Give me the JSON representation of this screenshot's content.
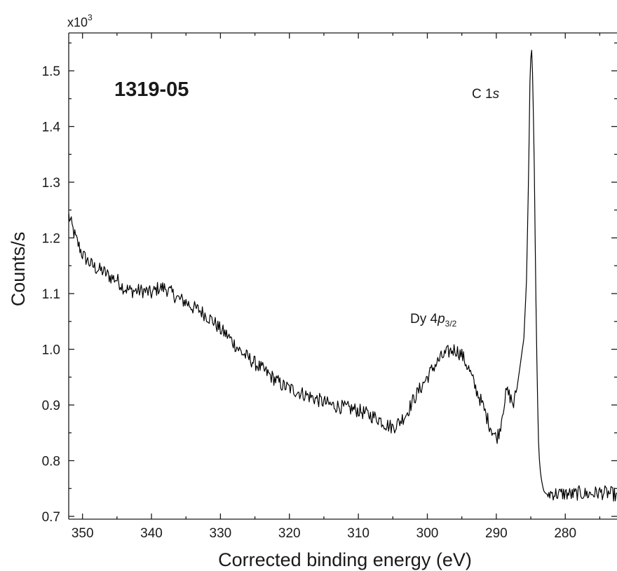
{
  "chart_data": {
    "type": "line",
    "title": "",
    "xlabel": "Corrected binding energy (eV)",
    "ylabel": "Counts/s",
    "y_multiplier": "x10",
    "y_multiplier_exponent": "3",
    "xlim": [
      352,
      272.5
    ],
    "x_reversed": true,
    "ylim": [
      0.695,
      1.568
    ],
    "x_ticks": [
      350,
      340,
      330,
      320,
      310,
      300,
      290,
      280
    ],
    "x_tick_labels": [
      "350",
      "340",
      "330",
      "320",
      "310",
      "300",
      "290",
      "280"
    ],
    "y_ticks": [
      0.7,
      0.8,
      0.9,
      1.0,
      1.1,
      1.2,
      1.3,
      1.4,
      1.5
    ],
    "y_tick_labels": [
      "0.7",
      "0.8",
      "0.9",
      "1.0",
      "1.1",
      "1.2",
      "1.3",
      "1.4",
      "1.5"
    ],
    "grid": false,
    "line_color": "#000000",
    "sample_label": "1319-05",
    "annotations": [
      {
        "prefix": "C 1",
        "italic": "s",
        "subscript": "",
        "x": 284.0,
        "y": 1.44
      },
      {
        "prefix": "Dy 4",
        "italic": "p",
        "subscript": "3/2",
        "x": 297.0,
        "y": 1.055
      }
    ],
    "series": [
      {
        "x": [
          352,
          351,
          350,
          349,
          348,
          347,
          346,
          345,
          344,
          343,
          342,
          341,
          340,
          339,
          338,
          337,
          336,
          335,
          334,
          333,
          332,
          331,
          330,
          329,
          328,
          327,
          326,
          325,
          324,
          323,
          322,
          321,
          320,
          319,
          318,
          317,
          316,
          315,
          314,
          313,
          312,
          311,
          310,
          309,
          308,
          307,
          306,
          305,
          304,
          303,
          302,
          301,
          300,
          299,
          298,
          297,
          296,
          295,
          294,
          293,
          292,
          291,
          290,
          289.5,
          289,
          288.5,
          288,
          287.5,
          287,
          286.5,
          286,
          285.6,
          285.3,
          285.1,
          284.9,
          284.7,
          284.5,
          284.3,
          284.1,
          283.9,
          283.7,
          283.5,
          283.3,
          283.1,
          282.9,
          282.7,
          282.5,
          282,
          281,
          280,
          279,
          278,
          277,
          276,
          275,
          274,
          273,
          272.5
        ],
        "values": [
          1.24,
          1.2,
          1.17,
          1.155,
          1.145,
          1.14,
          1.13,
          1.125,
          1.11,
          1.105,
          1.105,
          1.105,
          1.1,
          1.11,
          1.11,
          1.1,
          1.09,
          1.085,
          1.075,
          1.07,
          1.06,
          1.05,
          1.035,
          1.025,
          1.01,
          0.995,
          0.985,
          0.975,
          0.965,
          0.955,
          0.945,
          0.935,
          0.93,
          0.925,
          0.92,
          0.915,
          0.91,
          0.905,
          0.9,
          0.898,
          0.895,
          0.893,
          0.89,
          0.885,
          0.88,
          0.875,
          0.865,
          0.86,
          0.87,
          0.885,
          0.91,
          0.93,
          0.95,
          0.97,
          0.985,
          0.995,
          1.0,
          0.99,
          0.965,
          0.93,
          0.9,
          0.865,
          0.84,
          0.855,
          0.895,
          0.925,
          0.915,
          0.9,
          0.93,
          0.975,
          1.02,
          1.13,
          1.33,
          1.5,
          1.545,
          1.48,
          1.33,
          1.13,
          0.96,
          0.84,
          0.79,
          0.77,
          0.755,
          0.745,
          0.742,
          0.74,
          0.74,
          0.742,
          0.74,
          0.741,
          0.739,
          0.742,
          0.74,
          0.741,
          0.743,
          0.742,
          0.74,
          0.735
        ]
      }
    ]
  }
}
